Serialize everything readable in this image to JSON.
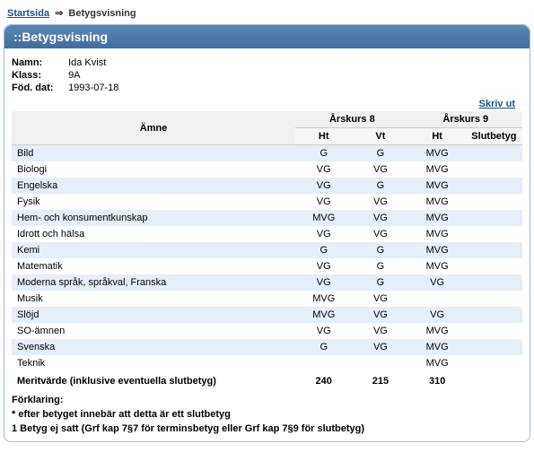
{
  "breadcrumb": {
    "home": "Startsida",
    "sep": "⇒",
    "current": "Betygsvisning"
  },
  "panel": {
    "title": "::Betygsvisning"
  },
  "info": {
    "name_label": "Namn:",
    "name_value": "Ida Kvist",
    "class_label": "Klass:",
    "class_value": "9A",
    "dob_label": "Föd. dat:",
    "dob_value": "1993-07-18"
  },
  "print_label": "Skriv ut",
  "headers": {
    "subject": "Ämne",
    "y8": "Årskurs 8",
    "y9": "Årskurs 9",
    "ht": "Ht",
    "vt": "Vt",
    "final": "Slutbetyg"
  },
  "rows": [
    {
      "subject": "Bild",
      "y8ht": "G",
      "y8vt": "G",
      "y9ht": "MVG",
      "final": ""
    },
    {
      "subject": "Biologi",
      "y8ht": "VG",
      "y8vt": "VG",
      "y9ht": "MVG",
      "final": ""
    },
    {
      "subject": "Engelska",
      "y8ht": "VG",
      "y8vt": "G",
      "y9ht": "MVG",
      "final": ""
    },
    {
      "subject": "Fysik",
      "y8ht": "VG",
      "y8vt": "VG",
      "y9ht": "MVG",
      "final": ""
    },
    {
      "subject": "Hem- och konsumentkunskap",
      "y8ht": "MVG",
      "y8vt": "VG",
      "y9ht": "MVG",
      "final": ""
    },
    {
      "subject": "Idrott och hälsa",
      "y8ht": "VG",
      "y8vt": "VG",
      "y9ht": "MVG",
      "final": ""
    },
    {
      "subject": "Kemi",
      "y8ht": "G",
      "y8vt": "G",
      "y9ht": "MVG",
      "final": ""
    },
    {
      "subject": "Matematik",
      "y8ht": "VG",
      "y8vt": "G",
      "y9ht": "MVG",
      "final": ""
    },
    {
      "subject": "Moderna språk, språkval, Franska",
      "y8ht": "VG",
      "y8vt": "G",
      "y9ht": "VG",
      "final": ""
    },
    {
      "subject": "Musik",
      "y8ht": "MVG",
      "y8vt": "VG",
      "y9ht": "",
      "final": ""
    },
    {
      "subject": "Slöjd",
      "y8ht": "MVG",
      "y8vt": "VG",
      "y9ht": "VG",
      "final": ""
    },
    {
      "subject": "SO-ämnen",
      "y8ht": "VG",
      "y8vt": "VG",
      "y9ht": "MVG",
      "final": ""
    },
    {
      "subject": "Svenska",
      "y8ht": "G",
      "y8vt": "VG",
      "y9ht": "MVG",
      "final": ""
    },
    {
      "subject": "Teknik",
      "y8ht": "",
      "y8vt": "",
      "y9ht": "MVG",
      "final": ""
    }
  ],
  "merit": {
    "label": "Meritvärde (inklusive eventuella slutbetyg)",
    "y8ht": "240",
    "y8vt": "215",
    "y9ht": "310",
    "final": ""
  },
  "footer": {
    "explain": "Förklaring:",
    "star": "* efter betyget innebär att detta är ett slutbetyg",
    "note": "1 Betyg ej satt (Grf kap 7§7 för terminsbetyg eller Grf kap 7§9 för slutbetyg)"
  },
  "colors": {
    "link": "#1b4f8f",
    "stripe": "#e6eef7",
    "header_bg": "#f0f0f0",
    "panel_border": "#a4b9d0",
    "panel_hd_top": "#5c86b3",
    "panel_hd_bot": "#3f6ea0"
  }
}
